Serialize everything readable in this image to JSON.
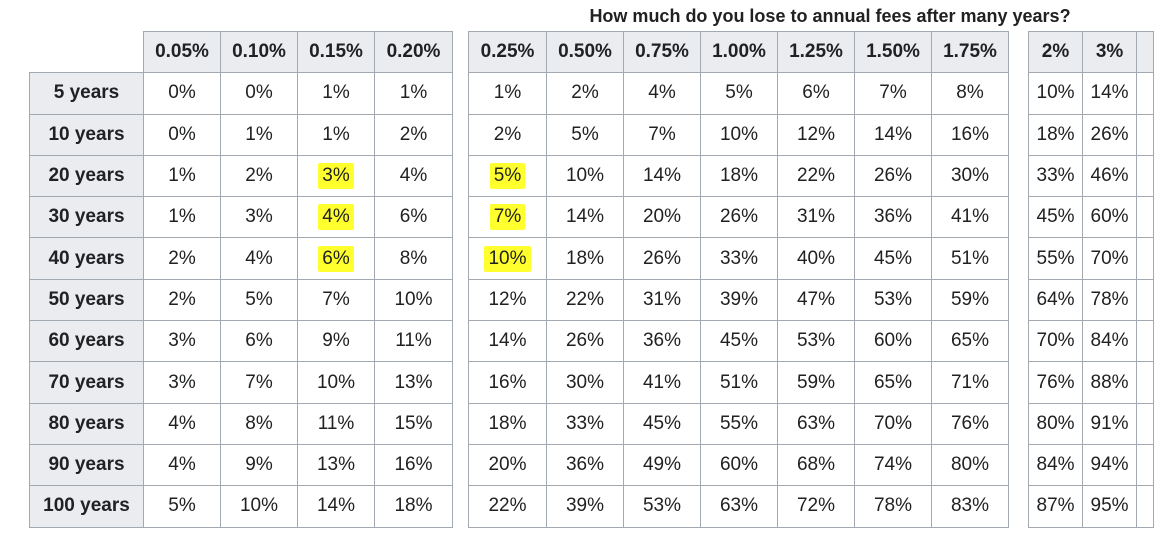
{
  "chart_data": {
    "type": "table",
    "title": "How much do you lose to annual fees after many years?",
    "row_labels": [
      "5 years",
      "10 years",
      "20 years",
      "30 years",
      "40 years",
      "50 years",
      "60 years",
      "70 years",
      "80 years",
      "90 years",
      "100 years"
    ],
    "tables": [
      {
        "columns": [
          "0.05%",
          "0.10%",
          "0.15%",
          "0.20%"
        ],
        "rows": [
          [
            "0%",
            "0%",
            "1%",
            "1%"
          ],
          [
            "0%",
            "1%",
            "1%",
            "2%"
          ],
          [
            "1%",
            "2%",
            "3%",
            "4%"
          ],
          [
            "1%",
            "3%",
            "4%",
            "6%"
          ],
          [
            "2%",
            "4%",
            "6%",
            "8%"
          ],
          [
            "2%",
            "5%",
            "7%",
            "10%"
          ],
          [
            "3%",
            "6%",
            "9%",
            "11%"
          ],
          [
            "3%",
            "7%",
            "10%",
            "13%"
          ],
          [
            "4%",
            "8%",
            "11%",
            "15%"
          ],
          [
            "4%",
            "9%",
            "13%",
            "16%"
          ],
          [
            "5%",
            "10%",
            "14%",
            "18%"
          ]
        ]
      },
      {
        "columns": [
          "0.25%",
          "0.50%",
          "0.75%",
          "1.00%",
          "1.25%",
          "1.50%",
          "1.75%"
        ],
        "rows": [
          [
            "1%",
            "2%",
            "4%",
            "5%",
            "6%",
            "7%",
            "8%"
          ],
          [
            "2%",
            "5%",
            "7%",
            "10%",
            "12%",
            "14%",
            "16%"
          ],
          [
            "5%",
            "10%",
            "14%",
            "18%",
            "22%",
            "26%",
            "30%"
          ],
          [
            "7%",
            "14%",
            "20%",
            "26%",
            "31%",
            "36%",
            "41%"
          ],
          [
            "10%",
            "18%",
            "26%",
            "33%",
            "40%",
            "45%",
            "51%"
          ],
          [
            "12%",
            "22%",
            "31%",
            "39%",
            "47%",
            "53%",
            "59%"
          ],
          [
            "14%",
            "26%",
            "36%",
            "45%",
            "53%",
            "60%",
            "65%"
          ],
          [
            "16%",
            "30%",
            "41%",
            "51%",
            "59%",
            "65%",
            "71%"
          ],
          [
            "18%",
            "33%",
            "45%",
            "55%",
            "63%",
            "70%",
            "76%"
          ],
          [
            "20%",
            "36%",
            "49%",
            "60%",
            "68%",
            "74%",
            "80%"
          ],
          [
            "22%",
            "39%",
            "53%",
            "63%",
            "72%",
            "78%",
            "83%"
          ]
        ]
      },
      {
        "columns": [
          "2%",
          "3%"
        ],
        "rows": [
          [
            "10%",
            "14%"
          ],
          [
            "18%",
            "26%"
          ],
          [
            "33%",
            "46%"
          ],
          [
            "45%",
            "60%"
          ],
          [
            "55%",
            "70%"
          ],
          [
            "64%",
            "78%"
          ],
          [
            "70%",
            "84%"
          ],
          [
            "76%",
            "88%"
          ],
          [
            "80%",
            "91%"
          ],
          [
            "84%",
            "94%"
          ],
          [
            "87%",
            "95%"
          ]
        ]
      }
    ],
    "highlighted_cells": [
      {
        "table": 0,
        "row": 2,
        "col": 2
      },
      {
        "table": 0,
        "row": 3,
        "col": 2
      },
      {
        "table": 0,
        "row": 4,
        "col": 2
      },
      {
        "table": 1,
        "row": 2,
        "col": 0
      },
      {
        "table": 1,
        "row": 3,
        "col": 0
      },
      {
        "table": 1,
        "row": 4,
        "col": 0
      }
    ],
    "highlight_color": "#ffff2e",
    "header_bg": "#eaecf0",
    "border_color": "#a2a9b1"
  }
}
